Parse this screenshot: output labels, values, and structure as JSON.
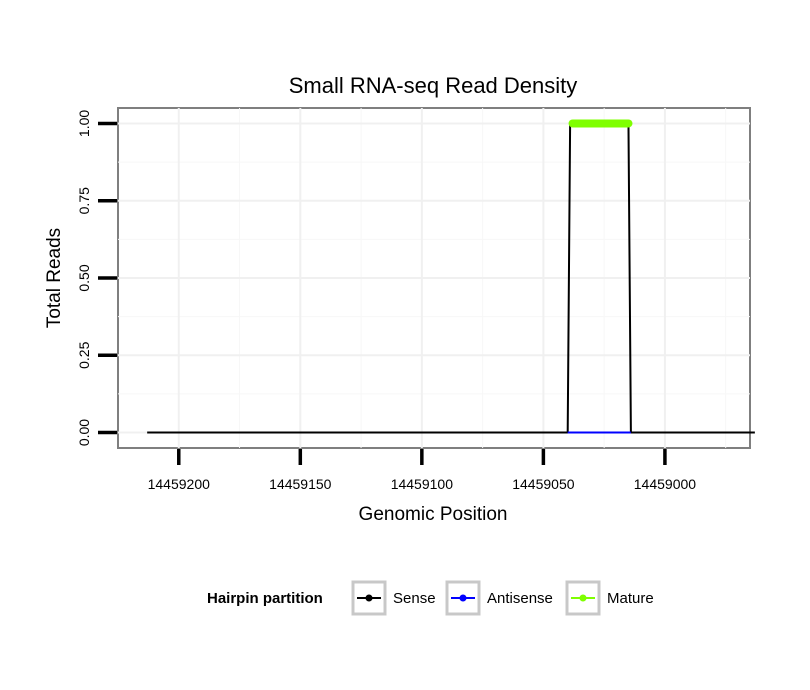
{
  "chart_data": {
    "type": "line",
    "title": "Small RNA-seq Read Density",
    "xlabel": "Genomic Position",
    "ylabel": "Total Reads",
    "x_reversed": true,
    "xlim": [
      14459225,
      14458965
    ],
    "ylim": [
      -0.05,
      1.05
    ],
    "x_ticks": [
      14459200,
      14459150,
      14459100,
      14459050,
      14459000
    ],
    "x_tick_labels": [
      "14459200",
      "14459150",
      "14459100",
      "14459050",
      "14459000"
    ],
    "y_ticks": [
      0,
      0.25,
      0.5,
      0.75,
      1.0
    ],
    "y_tick_labels": [
      "0.00",
      "0.25",
      "0.50",
      "0.75",
      "1.00"
    ],
    "grid": true,
    "legend_position": "bottom",
    "legend_title": "Hairpin partition",
    "series": [
      {
        "name": "Sense",
        "color": "#000000",
        "style": "line",
        "x": [
          14459213,
          14459040,
          14459039,
          14459015,
          14459014,
          14458963
        ],
        "y": [
          0,
          0,
          1,
          1,
          0,
          0
        ]
      },
      {
        "name": "Antisense",
        "color": "#0000ff",
        "style": "line",
        "x": [
          14459040,
          14459014
        ],
        "y": [
          0,
          0
        ]
      },
      {
        "name": "Mature",
        "color": "#7fff00",
        "style": "thick-line",
        "x": [
          14459038,
          14459015
        ],
        "y": [
          1,
          1
        ]
      }
    ]
  }
}
